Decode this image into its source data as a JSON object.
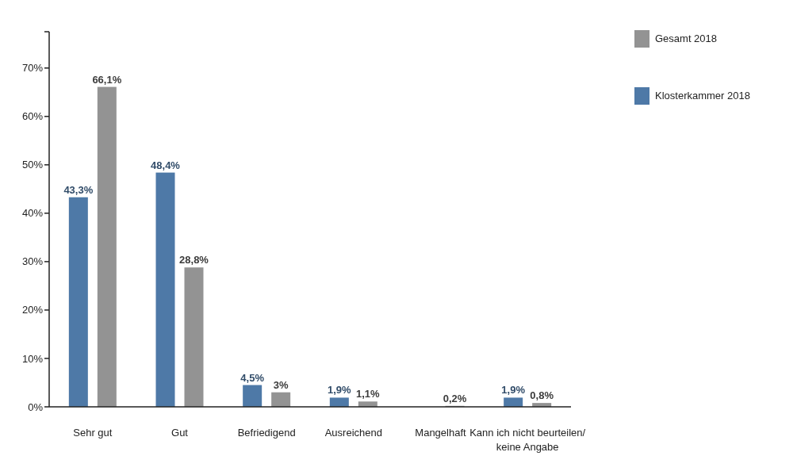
{
  "chart_data": {
    "type": "bar",
    "categories": [
      "Sehr gut",
      "Gut",
      "Befriedigend",
      "Ausreichend",
      "Mangelhaft",
      "Kann ich nicht beurteilen/\nkeine Angabe"
    ],
    "series": [
      {
        "name": "Klosterkammer 2018",
        "color": "#4e79a7",
        "values": [
          43.3,
          48.4,
          4.5,
          1.9,
          null,
          1.9
        ],
        "value_labels": [
          "43,3%",
          "48,4%",
          "4,5%",
          "1,9%",
          null,
          "1,9%"
        ]
      },
      {
        "name": "Gesamt 2018",
        "color": "#939393",
        "values": [
          66.1,
          28.8,
          3,
          1.1,
          0.2,
          0.8
        ],
        "value_labels": [
          "66,1%",
          "28,8%",
          "3%",
          "1,1%",
          "0,2%",
          "0,8%"
        ]
      }
    ],
    "ylim": [
      0,
      77.5
    ],
    "yticks": [
      {
        "value": 0,
        "label": "0%"
      },
      {
        "value": 10,
        "label": "10%"
      },
      {
        "value": 20,
        "label": "20%"
      },
      {
        "value": 30,
        "label": "30%"
      },
      {
        "value": 40,
        "label": "40%"
      },
      {
        "value": 50,
        "label": "50%"
      },
      {
        "value": 60,
        "label": "60%"
      },
      {
        "value": 70,
        "label": "70%"
      },
      {
        "value": 77.5,
        "label": null
      }
    ],
    "grid": false,
    "legend": "right"
  }
}
